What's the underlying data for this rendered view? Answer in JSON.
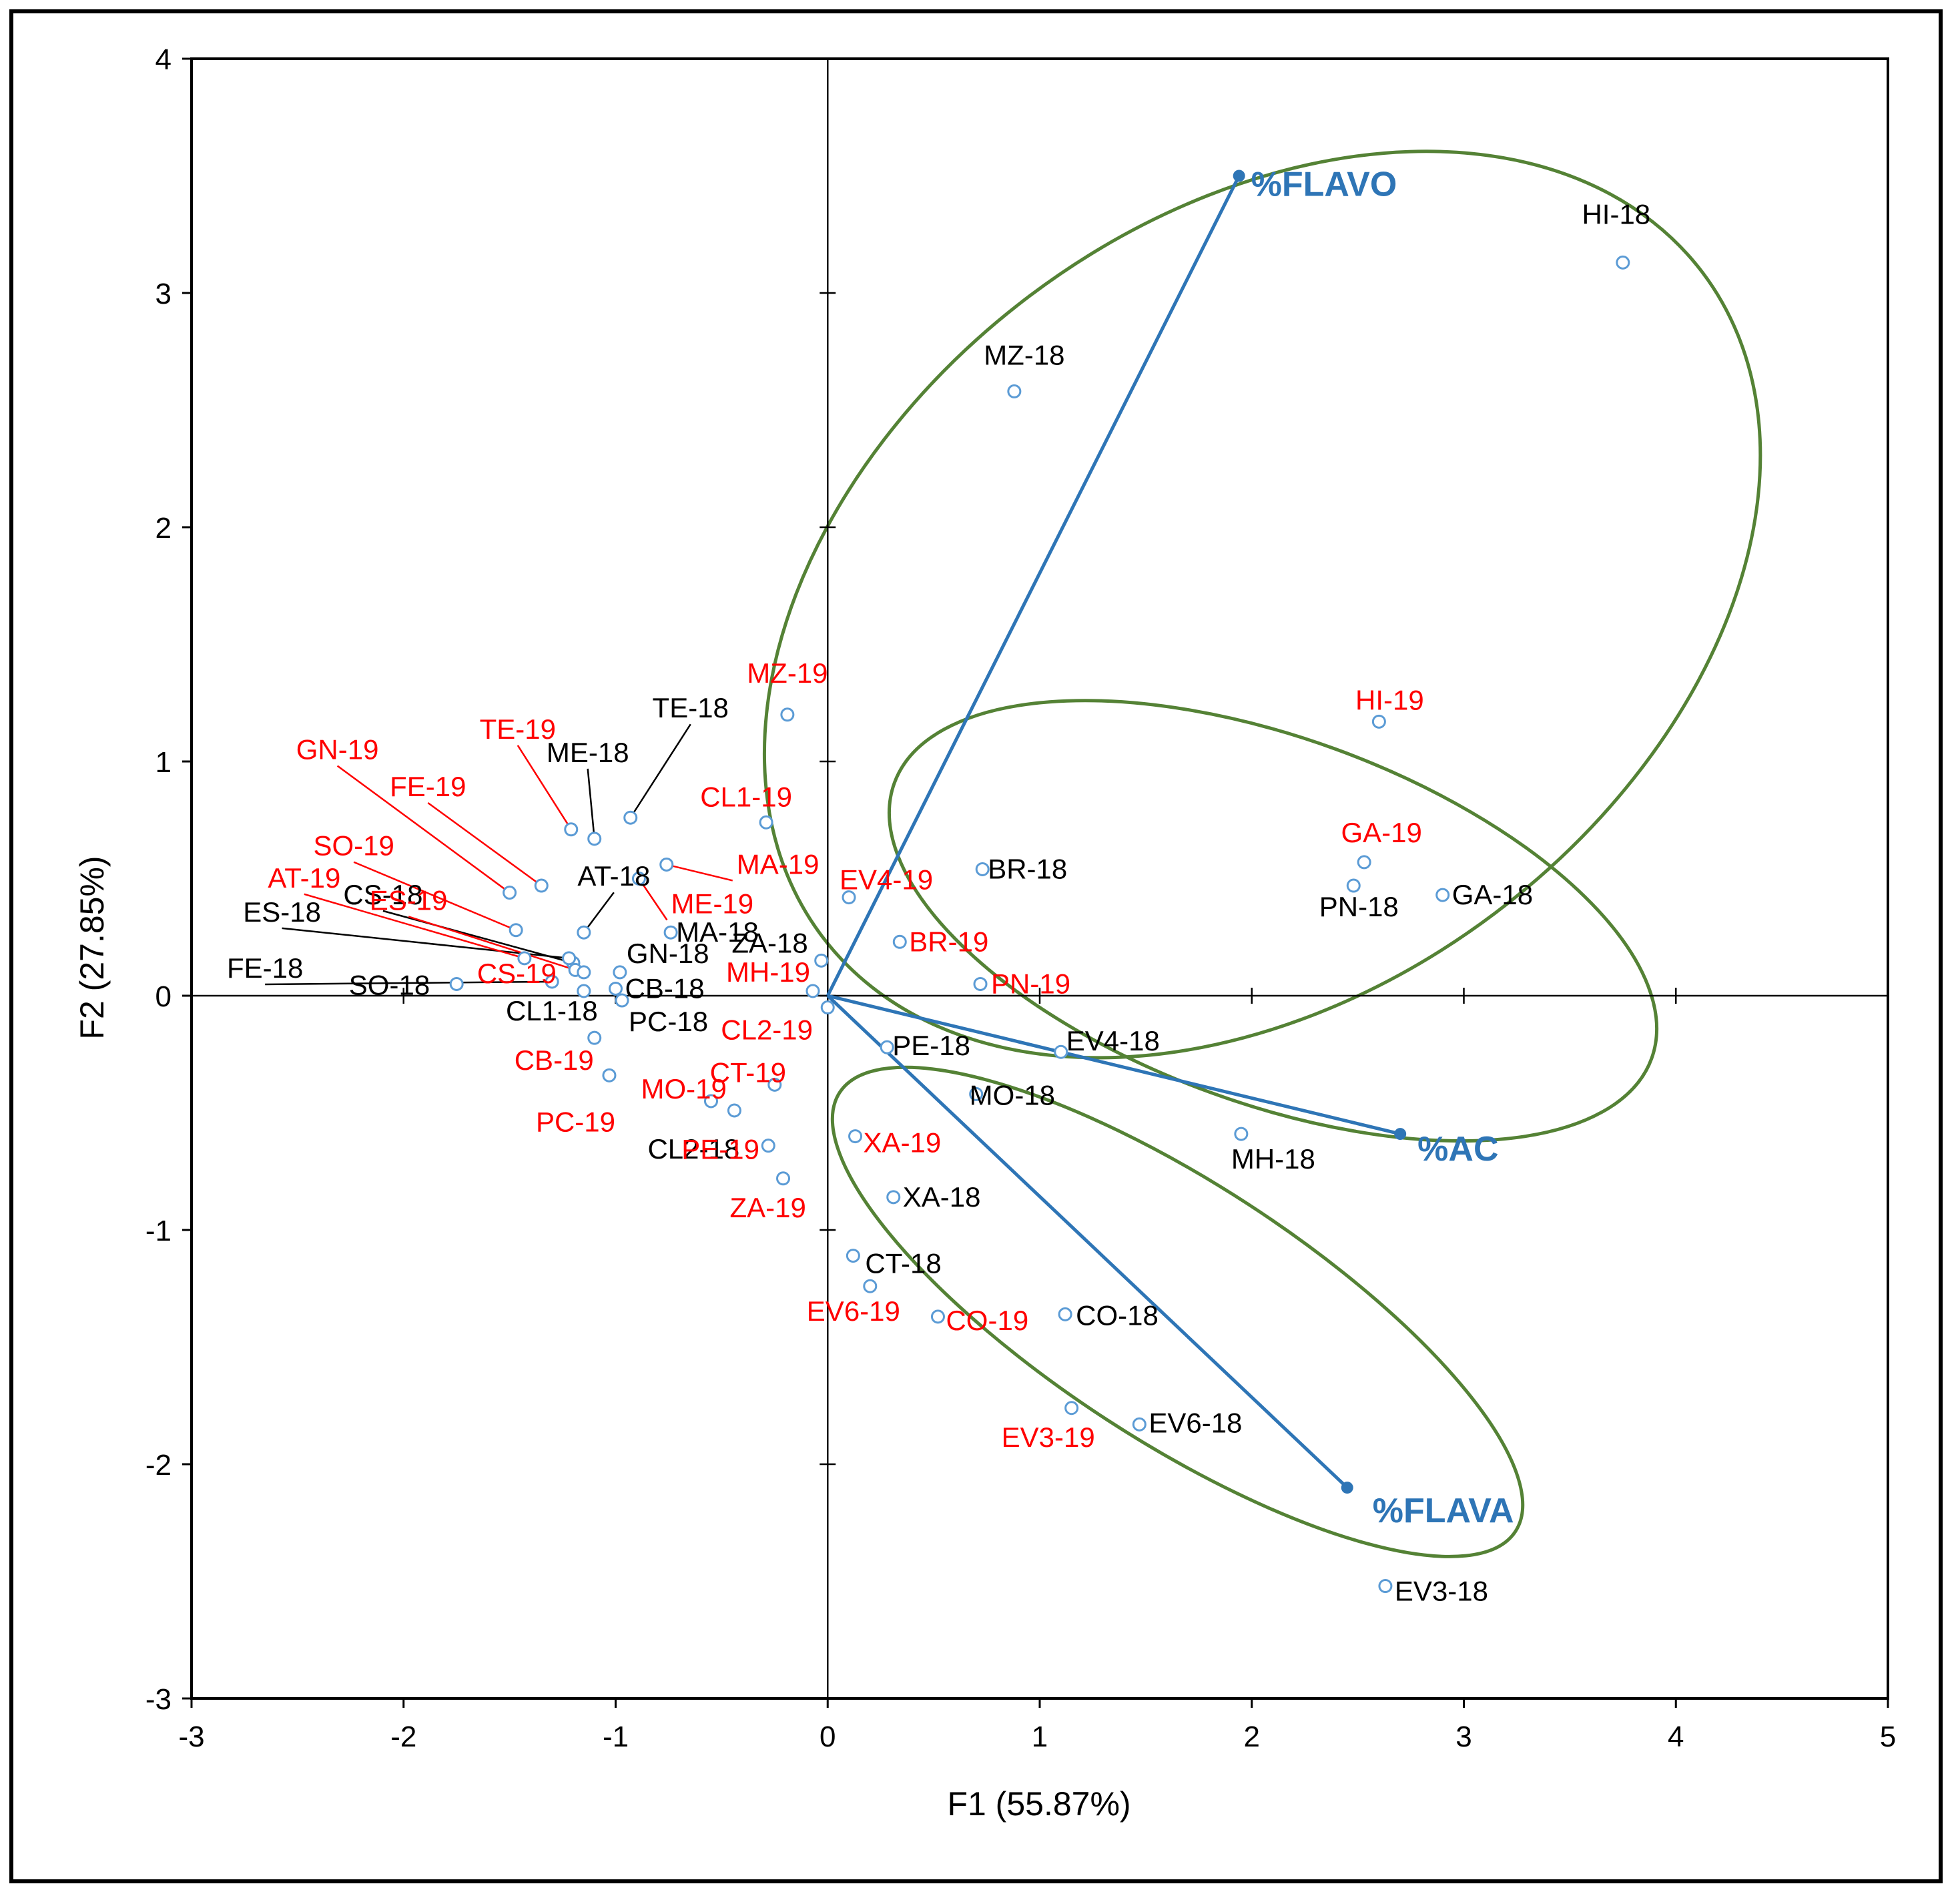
{
  "chart_data": {
    "type": "scatter",
    "subtype": "pca-biplot",
    "xlabel": "F1 (55.87%)",
    "ylabel": "F2 (27.85%)",
    "xlim": [
      -3,
      5
    ],
    "ylim": [
      -3,
      4
    ],
    "xticks": [
      -3,
      -2,
      -1,
      0,
      1,
      2,
      3,
      4,
      5
    ],
    "yticks": [
      -3,
      -2,
      -1,
      0,
      1,
      2,
      3,
      4
    ],
    "colors": {
      "point": "#5b9bd5",
      "vector": "#2e75b6",
      "ellipse": "#548235",
      "label_2018": "#000000",
      "label_2019": "#ff0000",
      "leader_2018": "#000000",
      "leader_2019": "#ff0000"
    },
    "vectors": [
      {
        "name": "%FLAVO",
        "x": 1.94,
        "y": 3.5
      },
      {
        "name": "%AC",
        "x": 2.7,
        "y": -0.59
      },
      {
        "name": "%FLAVA",
        "x": 2.45,
        "y": -2.1
      }
    ],
    "ellipses": [
      {
        "cx": 2.05,
        "cy": 1.67,
        "rx": 2.6,
        "ry": 1.65,
        "angle": 37
      },
      {
        "cx": 2.1,
        "cy": 0.32,
        "rx": 1.9,
        "ry": 0.78,
        "angle": -20
      },
      {
        "cx": 1.65,
        "cy": -1.35,
        "rx": 1.9,
        "ry": 0.55,
        "angle": -33
      }
    ],
    "points_2018": [
      {
        "name": "HI-18",
        "x": 3.75,
        "y": 3.13
      },
      {
        "name": "MZ-18",
        "x": 0.88,
        "y": 2.58
      },
      {
        "name": "BR-18",
        "x": 0.73,
        "y": 0.54
      },
      {
        "name": "GA-18",
        "x": 2.9,
        "y": 0.43
      },
      {
        "name": "PN-18",
        "x": 2.48,
        "y": 0.47
      },
      {
        "name": "EV4-18",
        "x": 1.1,
        "y": -0.24
      },
      {
        "name": "PE-18",
        "x": 0.28,
        "y": -0.22
      },
      {
        "name": "MO-18",
        "x": 0.7,
        "y": -0.42
      },
      {
        "name": "MH-18",
        "x": 1.95,
        "y": -0.59
      },
      {
        "name": "XA-18",
        "x": 0.31,
        "y": -0.86
      },
      {
        "name": "CT-18",
        "x": 0.12,
        "y": -1.11
      },
      {
        "name": "CO-18",
        "x": 1.12,
        "y": -1.36
      },
      {
        "name": "EV6-18",
        "x": 1.47,
        "y": -1.83
      },
      {
        "name": "EV3-18",
        "x": 2.63,
        "y": -2.52
      },
      {
        "name": "TE-18",
        "x": -0.93,
        "y": 0.76
      },
      {
        "name": "ME-18",
        "x": -1.1,
        "y": 0.67
      },
      {
        "name": "AT-18",
        "x": -1.15,
        "y": 0.27
      },
      {
        "name": "CS-18",
        "x": -1.2,
        "y": 0.14
      },
      {
        "name": "ES-18",
        "x": -1.22,
        "y": 0.16
      },
      {
        "name": "FE-18",
        "x": -1.3,
        "y": 0.06
      },
      {
        "name": "SO-18",
        "x": -1.75,
        "y": 0.05
      },
      {
        "name": "CL1-18",
        "x": -1.15,
        "y": 0.02
      },
      {
        "name": "GN-18",
        "x": -0.98,
        "y": 0.1
      },
      {
        "name": "CB-18",
        "x": -1.0,
        "y": 0.03
      },
      {
        "name": "PC-18",
        "x": -0.97,
        "y": -0.02
      },
      {
        "name": "MA-18",
        "x": -0.74,
        "y": 0.27
      },
      {
        "name": "ZA-18",
        "x": -0.03,
        "y": 0.15
      },
      {
        "name": "CL2-18",
        "x": -0.44,
        "y": -0.49
      }
    ],
    "points_2019": [
      {
        "name": "HI-19",
        "x": 2.6,
        "y": 1.17
      },
      {
        "name": "GA-19",
        "x": 2.53,
        "y": 0.57
      },
      {
        "name": "MZ-19",
        "x": -0.19,
        "y": 1.2
      },
      {
        "name": "CL1-19",
        "x": -0.29,
        "y": 0.74
      },
      {
        "name": "EV4-19",
        "x": 0.1,
        "y": 0.42
      },
      {
        "name": "MA-19",
        "x": -0.76,
        "y": 0.56
      },
      {
        "name": "ME-19",
        "x": -0.89,
        "y": 0.5
      },
      {
        "name": "BR-19",
        "x": 0.34,
        "y": 0.23
      },
      {
        "name": "PN-19",
        "x": 0.72,
        "y": 0.05
      },
      {
        "name": "MH-19",
        "x": -0.07,
        "y": 0.02
      },
      {
        "name": "CL2-19",
        "x": 0.0,
        "y": -0.05
      },
      {
        "name": "CT-19",
        "x": -0.25,
        "y": -0.38
      },
      {
        "name": "MO-19",
        "x": -0.55,
        "y": -0.45
      },
      {
        "name": "XA-19",
        "x": 0.13,
        "y": -0.6
      },
      {
        "name": "PE-19",
        "x": -0.28,
        "y": -0.64
      },
      {
        "name": "ZA-19",
        "x": -0.21,
        "y": -0.78
      },
      {
        "name": "EV6-19",
        "x": 0.2,
        "y": -1.24
      },
      {
        "name": "CO-19",
        "x": 0.52,
        "y": -1.37
      },
      {
        "name": "EV3-19",
        "x": 1.15,
        "y": -1.76
      },
      {
        "name": "TE-19",
        "x": -1.21,
        "y": 0.71
      },
      {
        "name": "FE-19",
        "x": -1.35,
        "y": 0.47
      },
      {
        "name": "GN-19",
        "x": -1.5,
        "y": 0.44
      },
      {
        "name": "SO-19",
        "x": -1.47,
        "y": 0.28
      },
      {
        "name": "AT-19",
        "x": -1.43,
        "y": 0.16
      },
      {
        "name": "ES-19",
        "x": -1.19,
        "y": 0.11
      },
      {
        "name": "CS-19",
        "x": -1.15,
        "y": 0.1
      },
      {
        "name": "CB-19",
        "x": -1.1,
        "y": -0.18
      },
      {
        "name": "PC-19",
        "x": -1.03,
        "y": -0.34
      }
    ]
  }
}
